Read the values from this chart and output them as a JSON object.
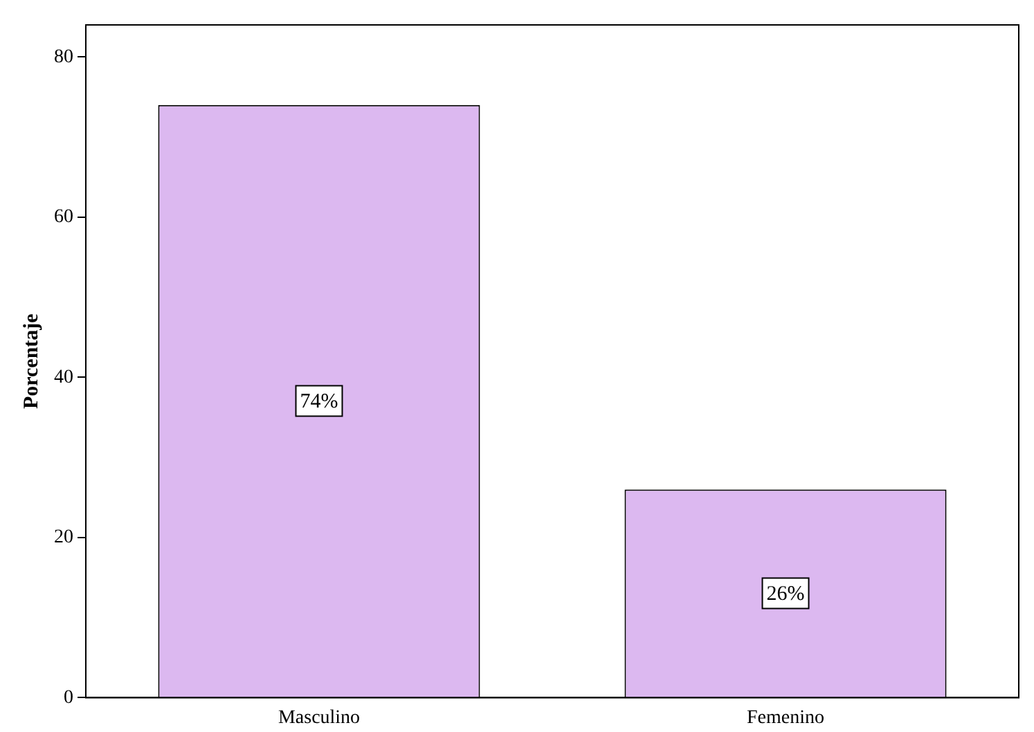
{
  "chart_data": {
    "type": "bar",
    "ylabel": "Porcentaje",
    "categories": [
      "Masculino",
      "Femenino"
    ],
    "values": [
      74,
      26
    ],
    "color": "#dcb8f0",
    "value_labels": [
      "74%",
      "26%"
    ],
    "ylim": [
      0,
      84
    ],
    "yticks": [
      0,
      20,
      40,
      60,
      80
    ],
    "grid": false,
    "legend": false
  }
}
